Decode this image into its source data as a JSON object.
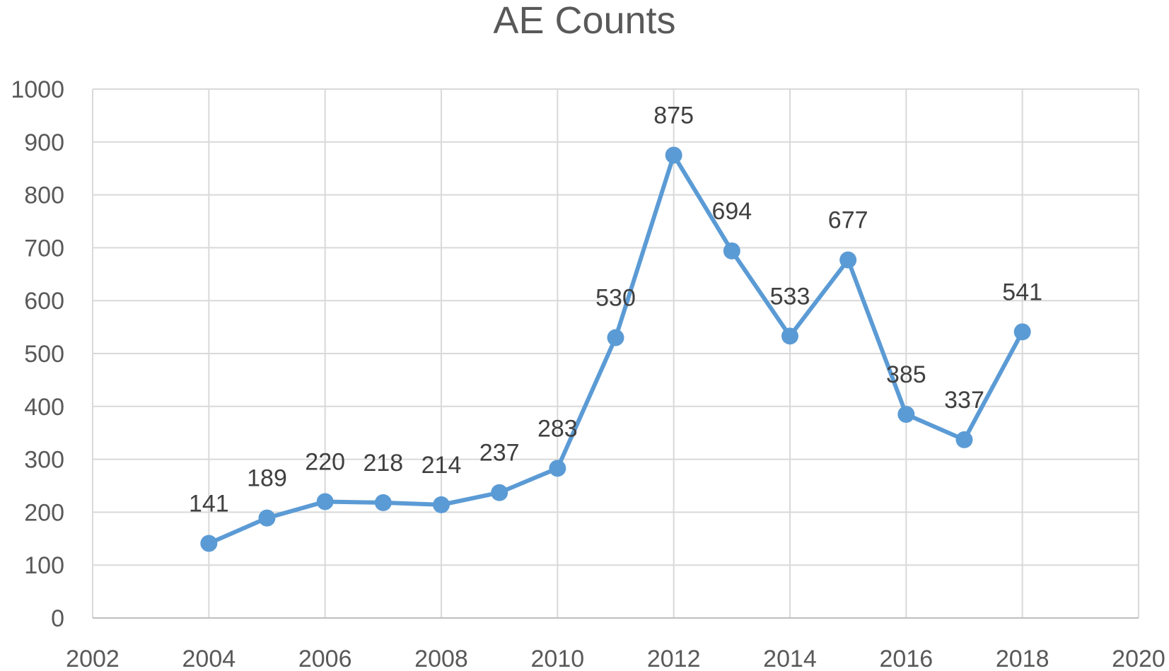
{
  "chart_data": {
    "type": "scatter",
    "title": "AE Counts",
    "xlabel": "",
    "ylabel": "",
    "xlim": [
      2002,
      2020
    ],
    "ylim": [
      0,
      1000
    ],
    "x_ticks": [
      2002,
      2004,
      2006,
      2008,
      2010,
      2012,
      2014,
      2016,
      2018,
      2020
    ],
    "y_ticks": [
      0,
      100,
      200,
      300,
      400,
      500,
      600,
      700,
      800,
      900,
      1000
    ],
    "grid": true,
    "legend": "none",
    "series": [
      {
        "x": [
          2004,
          2005,
          2006,
          2007,
          2008,
          2009,
          2010,
          2011,
          2012,
          2013,
          2014,
          2015,
          2016,
          2017,
          2018
        ],
        "y": [
          141,
          189,
          220,
          218,
          214,
          237,
          283,
          530,
          875,
          694,
          533,
          677,
          385,
          337,
          541
        ],
        "color": "#5B9BD5",
        "style": "line-with-markers",
        "data_labels": true
      }
    ],
    "colors": {
      "grid": "#d9d9d9",
      "axis": "#bfbfbf",
      "text": "#595959",
      "line": "#5B9BD5"
    }
  }
}
